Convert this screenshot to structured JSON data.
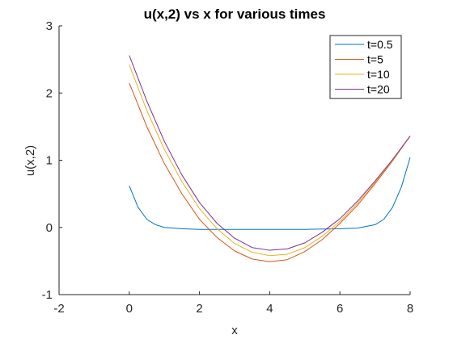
{
  "chart_data": {
    "type": "line",
    "title": "u(x,2) vs x for various times",
    "xlabel": "x",
    "ylabel": "u(x,2)",
    "xlim": [
      -2,
      8
    ],
    "ylim": [
      -1,
      3
    ],
    "xticks": [
      -2,
      0,
      2,
      4,
      6,
      8
    ],
    "yticks": [
      -1,
      0,
      1,
      2,
      3
    ],
    "xtick_labels": [
      "-2",
      "0",
      "2",
      "4",
      "6",
      "8"
    ],
    "ytick_labels": [
      "-1",
      "0",
      "1",
      "2",
      "3"
    ],
    "grid": false,
    "legend_position": "top-right",
    "series": [
      {
        "name": "t=0.5",
        "color": "#0072BD",
        "x": [
          0,
          0.25,
          0.5,
          0.75,
          1,
          1.5,
          2,
          3,
          4,
          5,
          6,
          6.5,
          7,
          7.25,
          7.5,
          7.75,
          8
        ],
        "y": [
          0.62,
          0.3,
          0.12,
          0.04,
          0.0,
          -0.02,
          -0.03,
          -0.03,
          -0.03,
          -0.03,
          -0.02,
          -0.01,
          0.04,
          0.12,
          0.3,
          0.6,
          1.04
        ]
      },
      {
        "name": "t=5",
        "color": "#D95319",
        "x": [
          0,
          0.5,
          1,
          1.5,
          2,
          2.5,
          3,
          3.5,
          4,
          4.5,
          5,
          5.5,
          6,
          6.5,
          7,
          7.5,
          8
        ],
        "y": [
          2.15,
          1.5,
          0.95,
          0.5,
          0.12,
          -0.15,
          -0.35,
          -0.47,
          -0.51,
          -0.48,
          -0.36,
          -0.18,
          0.06,
          0.33,
          0.65,
          0.99,
          1.36
        ]
      },
      {
        "name": "t=10",
        "color": "#EDB120",
        "x": [
          0,
          0.5,
          1,
          1.5,
          2,
          2.5,
          3,
          3.5,
          4,
          4.5,
          5,
          5.5,
          6,
          6.5,
          7,
          7.5,
          8
        ],
        "y": [
          2.42,
          1.74,
          1.16,
          0.68,
          0.28,
          -0.02,
          -0.24,
          -0.37,
          -0.42,
          -0.4,
          -0.3,
          -0.13,
          0.09,
          0.36,
          0.67,
          1.0,
          1.36
        ]
      },
      {
        "name": "t=20",
        "color": "#7E2F8E",
        "x": [
          0,
          0.5,
          1,
          1.5,
          2,
          2.5,
          3,
          3.5,
          4,
          4.5,
          5,
          5.5,
          6,
          6.5,
          7,
          7.5,
          8
        ],
        "y": [
          2.56,
          1.88,
          1.28,
          0.78,
          0.37,
          0.06,
          -0.16,
          -0.3,
          -0.34,
          -0.32,
          -0.23,
          -0.07,
          0.13,
          0.39,
          0.69,
          1.01,
          1.36
        ]
      }
    ]
  },
  "colors": {
    "axis": "#262626",
    "background": "#ffffff",
    "legend_border": "#262626"
  }
}
